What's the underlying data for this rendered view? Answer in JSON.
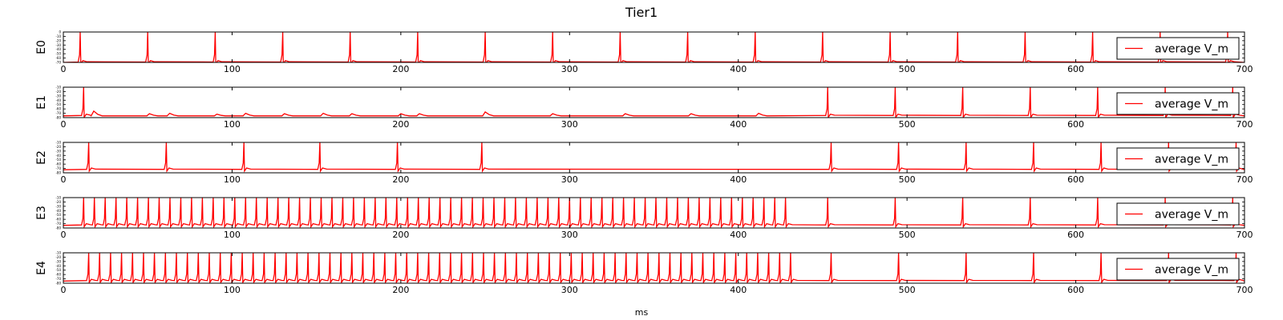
{
  "figure": {
    "title": "Tier1",
    "xlabel": "ms",
    "x_ticks": [
      0,
      100,
      200,
      300,
      400,
      500,
      600,
      700
    ],
    "xlim": [
      0,
      700
    ],
    "line_color": "#ff0000"
  },
  "chart_data": [
    {
      "type": "line",
      "ylabel": "E0",
      "legend": "average V_m",
      "legend_position": "right",
      "ylim": [
        -70,
        0
      ],
      "y_ticks": [
        0,
        -10,
        -20,
        -30,
        -40,
        -50,
        -60,
        -70
      ],
      "baseline": -70,
      "spike_peak": 0,
      "spike_times": [
        10,
        50,
        90,
        130,
        170,
        210,
        250,
        290,
        330,
        370,
        410,
        450,
        490,
        530,
        570,
        610,
        650,
        690
      ],
      "bumps": []
    },
    {
      "type": "line",
      "ylabel": "E1",
      "legend": "average V_m",
      "legend_position": "right",
      "ylim": [
        -80,
        -10
      ],
      "y_ticks": [
        -10,
        -20,
        -30,
        -40,
        -50,
        -60,
        -70,
        -80
      ],
      "baseline": -76,
      "spike_peak": -10,
      "spike_times": [
        12,
        453,
        493,
        533,
        573,
        613,
        653,
        693
      ],
      "bumps": [
        [
          18,
          -65
        ],
        [
          51,
          -71
        ],
        [
          63,
          -70
        ],
        [
          91,
          -72
        ],
        [
          108,
          -70
        ],
        [
          131,
          -71
        ],
        [
          154,
          -70
        ],
        [
          171,
          -71
        ],
        [
          200,
          -71
        ],
        [
          211,
          -71
        ],
        [
          250,
          -67
        ],
        [
          290,
          -71
        ],
        [
          333,
          -71
        ],
        [
          372,
          -71
        ],
        [
          412,
          -70
        ]
      ]
    },
    {
      "type": "line",
      "ylabel": "E2",
      "legend": "average V_m",
      "legend_position": "right",
      "ylim": [
        -80,
        -10
      ],
      "y_ticks": [
        -10,
        -20,
        -30,
        -40,
        -50,
        -60,
        -70,
        -80
      ],
      "baseline": -73,
      "spike_peak": -10,
      "spike_times": [
        15,
        61,
        107,
        152,
        198,
        248,
        455,
        495,
        535,
        575,
        615,
        655,
        695
      ],
      "bumps": []
    },
    {
      "type": "line",
      "ylabel": "E3",
      "legend": "average V_m",
      "legend_position": "right",
      "ylim": [
        -80,
        -10
      ],
      "y_ticks": [
        -10,
        -20,
        -30,
        -40,
        -50,
        -60,
        -70,
        -80
      ],
      "baseline": -74,
      "spike_peak": -10,
      "spike_times": [
        12,
        18.4,
        24.8,
        31.2,
        37.6,
        44,
        50.4,
        56.8,
        63.2,
        69.6,
        76,
        82.4,
        88.8,
        95.2,
        101.6,
        108,
        114.4,
        120.8,
        127.2,
        133.6,
        140,
        146.4,
        152.8,
        159.2,
        165.6,
        172,
        178.4,
        184.8,
        191.2,
        197.6,
        204,
        210.4,
        216.8,
        223.2,
        229.6,
        236,
        242.4,
        248.8,
        255.2,
        261.6,
        268,
        274.4,
        280.8,
        287.2,
        293.6,
        300,
        306.4,
        312.8,
        319.2,
        325.6,
        332,
        338.4,
        344.8,
        351.2,
        357.6,
        364,
        370.4,
        376.8,
        383.2,
        389.6,
        396,
        402.4,
        408.8,
        415.2,
        421.6,
        428,
        453,
        493,
        533,
        573,
        613,
        653,
        693
      ],
      "bumps": []
    },
    {
      "type": "line",
      "ylabel": "E4",
      "legend": "average V_m",
      "legend_position": "right",
      "ylim": [
        -80,
        -10
      ],
      "y_ticks": [
        -10,
        -20,
        -30,
        -40,
        -50,
        -60,
        -70,
        -80
      ],
      "baseline": -75,
      "spike_peak": -10,
      "spike_times": [
        15,
        21.5,
        28,
        34.5,
        41,
        47.5,
        54,
        60.5,
        67,
        73.5,
        80,
        86.5,
        93,
        99.5,
        106,
        112.5,
        119,
        125.5,
        132,
        138.5,
        145,
        151.5,
        158,
        164.5,
        171,
        177.5,
        184,
        190.5,
        197,
        203.5,
        210,
        216.5,
        223,
        229.5,
        236,
        242.5,
        249,
        255.5,
        262,
        268.5,
        275,
        281.5,
        288,
        294.5,
        301,
        307.5,
        314,
        320.5,
        327,
        333.5,
        340,
        346.5,
        353,
        359.5,
        366,
        372.5,
        379,
        385.5,
        392,
        398.5,
        405,
        411.5,
        418,
        424.5,
        431,
        455,
        495,
        535,
        575,
        615,
        655,
        695
      ],
      "bumps": []
    }
  ]
}
